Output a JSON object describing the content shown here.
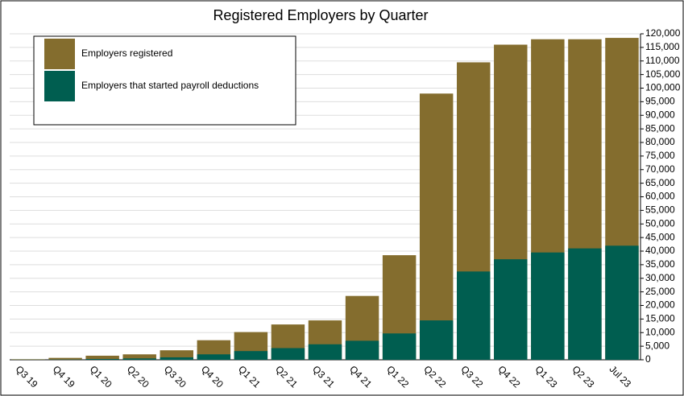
{
  "chart_data": {
    "type": "bar",
    "title": "Registered Employers by Quarter",
    "categories": [
      "Q3 19",
      "Q4 19",
      "Q1 20",
      "Q2 20",
      "Q3 20",
      "Q4 20",
      "Q1 21",
      "Q2 21",
      "Q3 21",
      "Q4 21",
      "Q1 22",
      "Q2 22",
      "Q3 22",
      "Q4 22",
      "Q1 23",
      "Q2 23",
      "Jul 23"
    ],
    "series": [
      {
        "name": "Employers registered",
        "color": "#846d2e",
        "values": [
          200,
          700,
          1500,
          2000,
          3500,
          7200,
          10200,
          13000,
          14500,
          23500,
          38500,
          98000,
          109500,
          116000,
          118000,
          118000,
          118500
        ]
      },
      {
        "name": "Employers that started payroll deductions",
        "color": "#005e50",
        "values": [
          50,
          100,
          300,
          500,
          900,
          2000,
          3200,
          4300,
          5700,
          7000,
          9700,
          14500,
          32500,
          37000,
          39500,
          41000,
          42000
        ]
      }
    ],
    "ylim": [
      0,
      120000
    ],
    "yticks": [
      0,
      {
        "value": 5000,
        "label": "5,000"
      },
      {
        "value": 10000,
        "label": "10,000"
      },
      {
        "value": 15000,
        "label": "15,000"
      },
      {
        "value": 20000,
        "label": "20,000"
      },
      {
        "value": 25000,
        "label": "25,000"
      },
      {
        "value": 30000,
        "label": "30,000"
      },
      {
        "value": 35000,
        "label": "35,000"
      },
      {
        "value": 40000,
        "label": "40,000"
      },
      {
        "value": 45000,
        "label": "45,000"
      },
      {
        "value": 50000,
        "label": "50,000"
      },
      {
        "value": 55000,
        "label": "55,000"
      },
      {
        "value": 60000,
        "label": "60,000"
      },
      {
        "value": 65000,
        "label": "65,000"
      },
      {
        "value": 70000,
        "label": "70,000"
      },
      {
        "value": 75000,
        "label": "75,000"
      },
      {
        "value": 80000,
        "label": "80,000"
      },
      {
        "value": 85000,
        "label": "85,000"
      },
      {
        "value": 90000,
        "label": "90,000"
      },
      {
        "value": 95000,
        "label": "95,000"
      },
      {
        "value": 100000,
        "label": "100,000"
      },
      {
        "value": 105000,
        "label": "105,000"
      },
      {
        "value": 110000,
        "label": "110,000"
      },
      {
        "value": 115000,
        "label": "115,000"
      },
      {
        "value": 120000,
        "label": "120,000"
      }
    ],
    "grid": true,
    "legend": "top-left",
    "axis_side": "right"
  }
}
